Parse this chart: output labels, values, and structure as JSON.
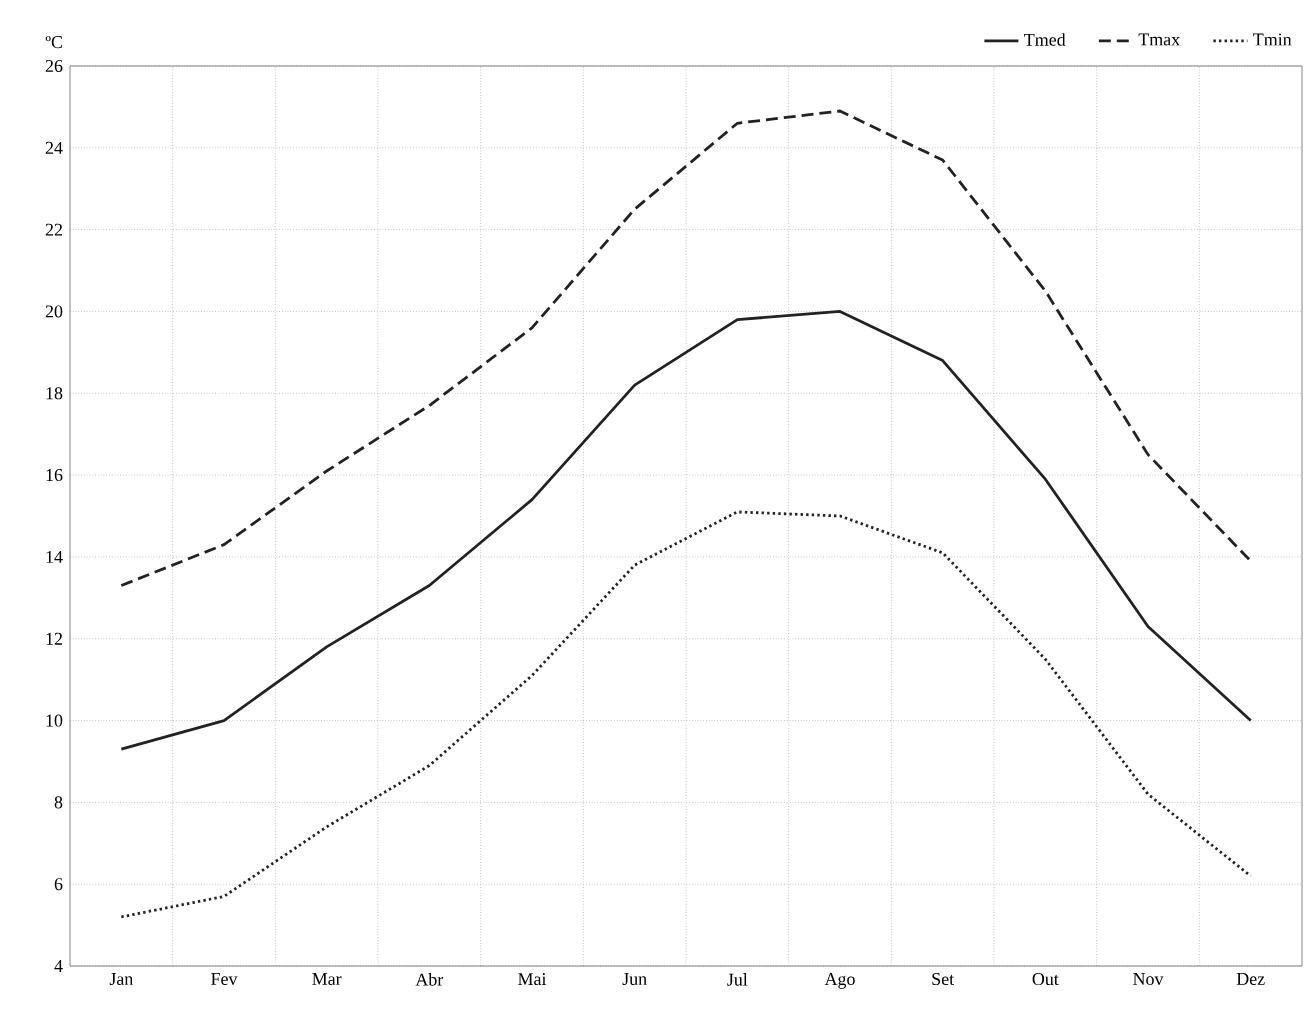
{
  "chart_data": {
    "type": "line",
    "ylabel": "ºC",
    "categories": [
      "Jan",
      "Fev",
      "Mar",
      "Abr",
      "Mai",
      "Jun",
      "Jul",
      "Ago",
      "Set",
      "Out",
      "Nov",
      "Dez"
    ],
    "series": [
      {
        "name": "Tmed",
        "color": "#222222",
        "line_style": "solid",
        "values": [
          9.3,
          10.0,
          11.8,
          13.3,
          15.4,
          18.2,
          19.8,
          20.0,
          18.8,
          15.9,
          12.3,
          10.0
        ]
      },
      {
        "name": "Tmax",
        "color": "#222222",
        "line_style": "dashed",
        "values": [
          13.3,
          14.3,
          16.1,
          17.7,
          19.6,
          22.5,
          24.6,
          24.9,
          23.7,
          20.5,
          16.5,
          13.9
        ]
      },
      {
        "name": "Tmin",
        "color": "#222222",
        "line_style": "dotted",
        "values": [
          5.2,
          5.7,
          7.4,
          8.9,
          11.1,
          13.8,
          15.1,
          15.0,
          14.1,
          11.5,
          8.2,
          6.2
        ]
      }
    ],
    "ylim": [
      4,
      26
    ],
    "yticks": [
      4,
      6,
      8,
      10,
      12,
      14,
      16,
      18,
      20,
      22,
      24,
      26
    ],
    "grid": true,
    "legend": "top right",
    "marker": "none"
  }
}
